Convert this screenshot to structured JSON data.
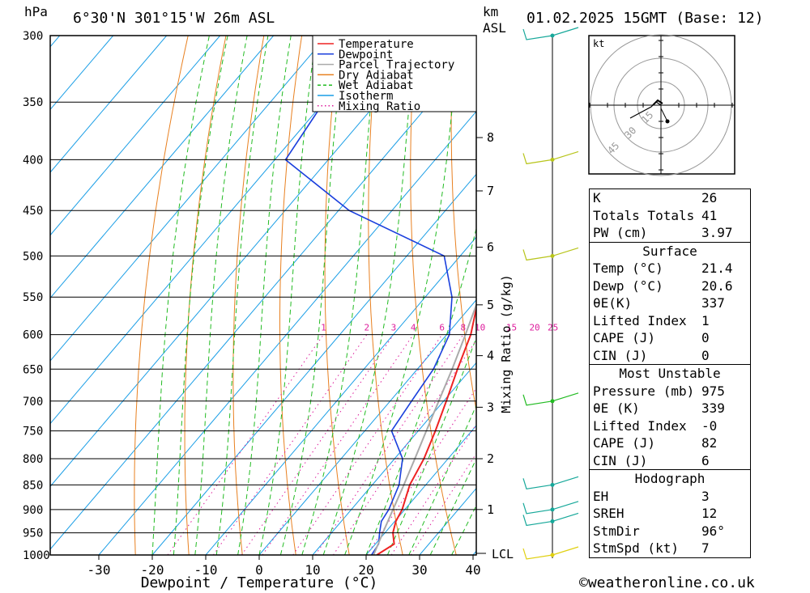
{
  "header": {
    "location": "6°30'N  301°15'W  26m  ASL",
    "datetime": "01.02.2025  15GMT  (Base: 12)",
    "pressure_unit": "hPa",
    "km_unit": "km",
    "asl_label": "ASL"
  },
  "chart_data": {
    "type": "line",
    "title": "6°30'N  301°15'W  26m  ASL",
    "xlabel": "Dewpoint / Temperature (°C)",
    "ylabel": "hPa",
    "y2label": "Mixing Ratio (g/kg)",
    "x_ticks": [
      -30,
      -20,
      -10,
      0,
      10,
      20,
      30,
      40
    ],
    "xlim": [
      -40,
      40
    ],
    "y_scale": "log",
    "ylim": [
      1000,
      300
    ],
    "pressure_levels": [
      300,
      350,
      400,
      450,
      500,
      550,
      600,
      650,
      700,
      750,
      800,
      850,
      900,
      950,
      1000
    ],
    "km_ticks": [
      1,
      2,
      3,
      4,
      5,
      6,
      7,
      8
    ],
    "km_tick_pressures": [
      900,
      800,
      710,
      630,
      560,
      490,
      430,
      380
    ],
    "lcl_label": "LCL",
    "mixing_ratio_labels": [
      "1",
      "2",
      "3",
      "4",
      "6",
      "8",
      "10",
      "15",
      "20",
      "25"
    ],
    "legend": {
      "position": "top-right",
      "entries": [
        {
          "name": "Temperature",
          "color": "#ee2222",
          "dash": "solid"
        },
        {
          "name": "Dewpoint",
          "color": "#1a3fdd",
          "dash": "solid"
        },
        {
          "name": "Parcel Trajectory",
          "color": "#aaaaaa",
          "dash": "solid"
        },
        {
          "name": "Dry Adiabat",
          "color": "#e88020",
          "dash": "solid"
        },
        {
          "name": "Wet Adiabat",
          "color": "#22bb22",
          "dash": "dashed"
        },
        {
          "name": "Isotherm",
          "color": "#1a9ee6",
          "dash": "solid"
        },
        {
          "name": "Mixing Ratio",
          "color": "#dd1c9c",
          "dash": "dotted"
        }
      ]
    },
    "series": [
      {
        "name": "Temperature",
        "color": "#ee2222",
        "points": [
          [
            1000,
            22
          ],
          [
            975,
            23.5
          ],
          [
            950,
            21.5
          ],
          [
            925,
            20.2
          ],
          [
            900,
            19.5
          ],
          [
            850,
            17
          ],
          [
            800,
            15.5
          ],
          [
            750,
            13.2
          ],
          [
            700,
            10.5
          ],
          [
            650,
            7.5
          ],
          [
            600,
            4.5
          ],
          [
            550,
            0
          ],
          [
            500,
            -5.5
          ],
          [
            450,
            -11
          ],
          [
            400,
            -18.5
          ],
          [
            360,
            -26
          ],
          [
            340,
            -29
          ],
          [
            310,
            -34
          ],
          [
            300,
            -36
          ]
        ]
      },
      {
        "name": "Dewpoint",
        "color": "#1a3fdd",
        "points": [
          [
            1000,
            21
          ],
          [
            975,
            20.6
          ],
          [
            950,
            19
          ],
          [
            925,
            17.5
          ],
          [
            900,
            17
          ],
          [
            850,
            15
          ],
          [
            800,
            11.5
          ],
          [
            750,
            5
          ],
          [
            700,
            4
          ],
          [
            650,
            3
          ],
          [
            600,
            0.5
          ],
          [
            550,
            -5
          ],
          [
            500,
            -13
          ],
          [
            450,
            -38
          ],
          [
            400,
            -58
          ],
          [
            350,
            -60
          ],
          [
            300,
            -72
          ]
        ]
      },
      {
        "name": "Parcel Trajectory",
        "color": "#aaaaaa",
        "points": [
          [
            1000,
            21.4
          ],
          [
            950,
            19.6
          ],
          [
            900,
            17.8
          ],
          [
            850,
            15.9
          ],
          [
            800,
            13.8
          ],
          [
            750,
            11.5
          ],
          [
            700,
            9.1
          ],
          [
            650,
            6.5
          ],
          [
            600,
            3.5
          ],
          [
            550,
            0.1
          ],
          [
            500,
            -3.9
          ],
          [
            450,
            -8.7
          ],
          [
            400,
            -14.5
          ],
          [
            350,
            -22
          ],
          [
            300,
            -31.5
          ]
        ]
      }
    ],
    "wind_barbs": [
      {
        "pressure": 300,
        "color": "#17a89a"
      },
      {
        "pressure": 400,
        "color": "#b8c51c"
      },
      {
        "pressure": 500,
        "color": "#b8c51c"
      },
      {
        "pressure": 700,
        "color": "#22bb22"
      },
      {
        "pressure": 850,
        "color": "#17a89a"
      },
      {
        "pressure": 900,
        "color": "#17a89a"
      },
      {
        "pressure": 925,
        "color": "#17a89a"
      },
      {
        "pressure": 1000,
        "color": "#e0d010"
      }
    ]
  },
  "hodograph": {
    "unit": "kt",
    "ring_labels": [
      "15",
      "30",
      "45"
    ]
  },
  "indices": {
    "general": [
      {
        "label": "K",
        "value": "26"
      },
      {
        "label": "Totals Totals",
        "value": "41"
      },
      {
        "label": "PW (cm)",
        "value": "3.97"
      }
    ],
    "surface": {
      "title": "Surface",
      "rows": [
        {
          "label": "Temp (°C)",
          "value": "21.4"
        },
        {
          "label": "Dewp (°C)",
          "value": "20.6"
        },
        {
          "label": "θE(K)",
          "value": "337"
        },
        {
          "label": "Lifted Index",
          "value": "1"
        },
        {
          "label": "CAPE (J)",
          "value": "0"
        },
        {
          "label": "CIN (J)",
          "value": "0"
        }
      ]
    },
    "most_unstable": {
      "title": "Most Unstable",
      "rows": [
        {
          "label": "Pressure (mb)",
          "value": "975"
        },
        {
          "label": "θE (K)",
          "value": "339"
        },
        {
          "label": "Lifted Index",
          "value": "-0"
        },
        {
          "label": "CAPE (J)",
          "value": "82"
        },
        {
          "label": "CIN (J)",
          "value": "6"
        }
      ]
    },
    "hodograph": {
      "title": "Hodograph",
      "rows": [
        {
          "label": "EH",
          "value": "3"
        },
        {
          "label": "SREH",
          "value": "12"
        },
        {
          "label": "StmDir",
          "value": "96°"
        },
        {
          "label": "StmSpd (kt)",
          "value": "7"
        }
      ]
    }
  },
  "footer": {
    "credit": "©weatheronline.co.uk"
  }
}
